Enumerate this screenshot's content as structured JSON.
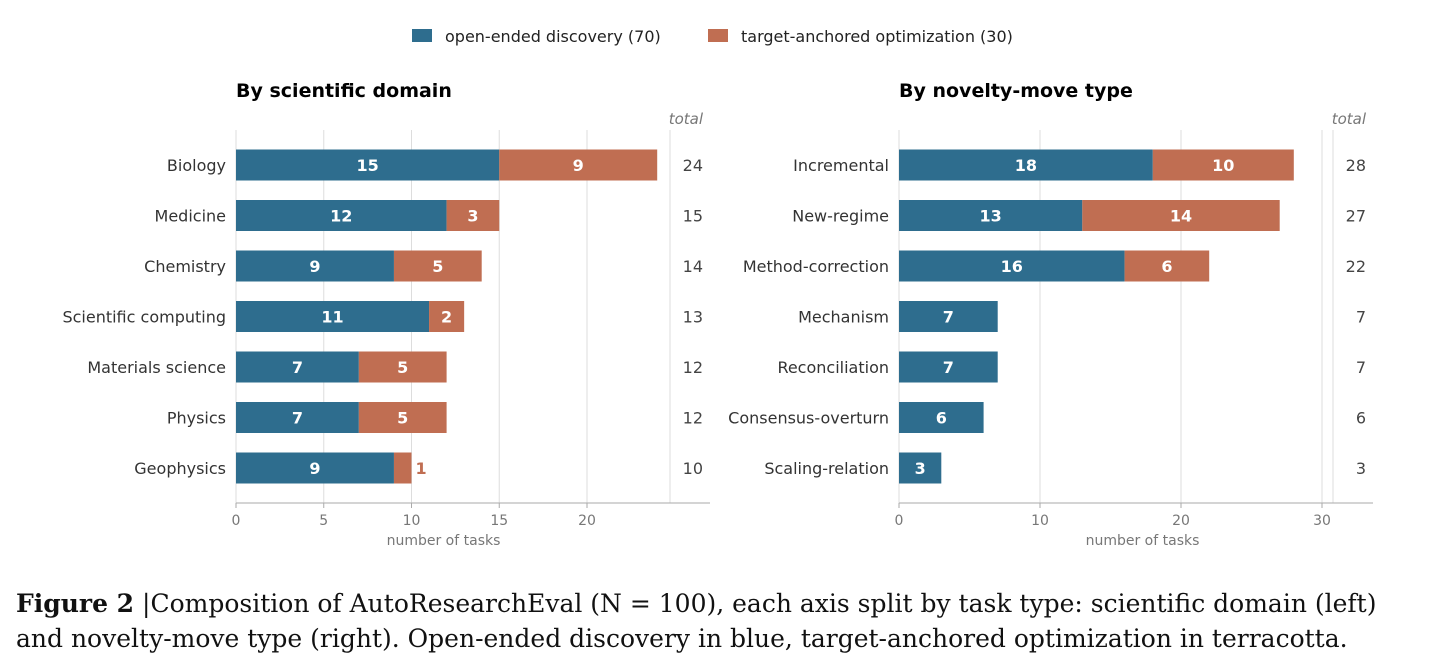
{
  "colors": {
    "open": "#2e6d8e",
    "target": "#c06e52",
    "grid": "#dddddd",
    "axis": "#aaaaaa"
  },
  "legend": [
    {
      "label": "open-ended discovery  (70)",
      "color": "#2e6d8e"
    },
    {
      "label": "target-anchored optimization  (30)",
      "color": "#c06e52"
    }
  ],
  "chart_data": [
    {
      "type": "bar",
      "orientation": "horizontal",
      "stacked": true,
      "title": "By scientific domain",
      "xlabel": "number of tasks",
      "total_header": "total",
      "xlim": [
        0,
        27
      ],
      "xticks": [
        0,
        5,
        10,
        15,
        20
      ],
      "categories": [
        "Biology",
        "Medicine",
        "Chemistry",
        "Scientific computing",
        "Materials science",
        "Physics",
        "Geophysics"
      ],
      "series": [
        {
          "name": "open-ended discovery",
          "values": [
            15,
            12,
            9,
            11,
            7,
            7,
            9
          ]
        },
        {
          "name": "target-anchored optimization",
          "values": [
            9,
            3,
            5,
            2,
            5,
            5,
            1
          ]
        }
      ],
      "totals": [
        24,
        15,
        14,
        13,
        12,
        12,
        10
      ],
      "grid": true
    },
    {
      "type": "bar",
      "orientation": "horizontal",
      "stacked": true,
      "title": "By novelty-move type",
      "xlabel": "number of tasks",
      "total_header": "total",
      "xlim": [
        0,
        33.5
      ],
      "xticks": [
        0,
        10,
        20,
        30
      ],
      "categories": [
        "Incremental",
        "New-regime",
        "Method-correction",
        "Mechanism",
        "Reconciliation",
        "Consensus-overturn",
        "Scaling-relation"
      ],
      "series": [
        {
          "name": "open-ended discovery",
          "values": [
            18,
            13,
            16,
            7,
            7,
            6,
            3
          ]
        },
        {
          "name": "target-anchored optimization",
          "values": [
            10,
            14,
            6,
            0,
            0,
            0,
            0
          ]
        }
      ],
      "totals": [
        28,
        27,
        22,
        7,
        7,
        6,
        3
      ],
      "grid": true
    }
  ],
  "caption": {
    "label": "Figure 2",
    "text": "|Composition of AutoResearchEval (N = 100), each axis split by task type: scientific domain (left) and novelty-move type (right). Open-ended discovery in blue, target-anchored optimization in terracotta."
  }
}
